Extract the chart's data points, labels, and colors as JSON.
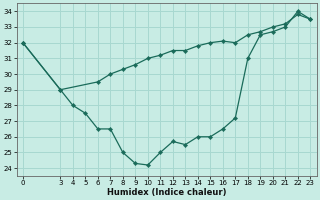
{
  "xlabel": "Humidex (Indice chaleur)",
  "bg_color": "#c8ece4",
  "grid_color": "#a8d8d0",
  "line_color": "#1a6b5a",
  "ylim": [
    23.5,
    34.5
  ],
  "xlim": [
    -0.5,
    23.5
  ],
  "yticks": [
    24,
    25,
    26,
    27,
    28,
    29,
    30,
    31,
    32,
    33,
    34
  ],
  "xticks": [
    0,
    3,
    4,
    5,
    6,
    7,
    8,
    9,
    10,
    11,
    12,
    13,
    14,
    15,
    16,
    17,
    18,
    19,
    20,
    21,
    22,
    23
  ],
  "line1_x": [
    0,
    3,
    4,
    5,
    6,
    7,
    8,
    9,
    10,
    11,
    12,
    13,
    14,
    15,
    16,
    17,
    18,
    19,
    20,
    21,
    22,
    23
  ],
  "line1_y": [
    32.0,
    29.0,
    28.0,
    27.5,
    26.5,
    26.5,
    25.0,
    24.3,
    24.2,
    25.0,
    25.7,
    25.5,
    26.0,
    26.0,
    26.5,
    27.2,
    31.0,
    32.5,
    32.7,
    33.0,
    34.0,
    33.5
  ],
  "line2_x": [
    0,
    3,
    6,
    7,
    8,
    9,
    10,
    11,
    12,
    13,
    14,
    15,
    16,
    17,
    18,
    19,
    20,
    21,
    22,
    23
  ],
  "line2_y": [
    32.0,
    29.0,
    29.5,
    30.0,
    30.3,
    30.6,
    31.0,
    31.2,
    31.5,
    31.5,
    31.8,
    32.0,
    32.1,
    32.0,
    32.5,
    32.7,
    33.0,
    33.2,
    33.8,
    33.5
  ],
  "xlabel_fontsize": 6.0,
  "tick_labelsize": 5.0,
  "linewidth": 0.9,
  "markersize": 2.2
}
